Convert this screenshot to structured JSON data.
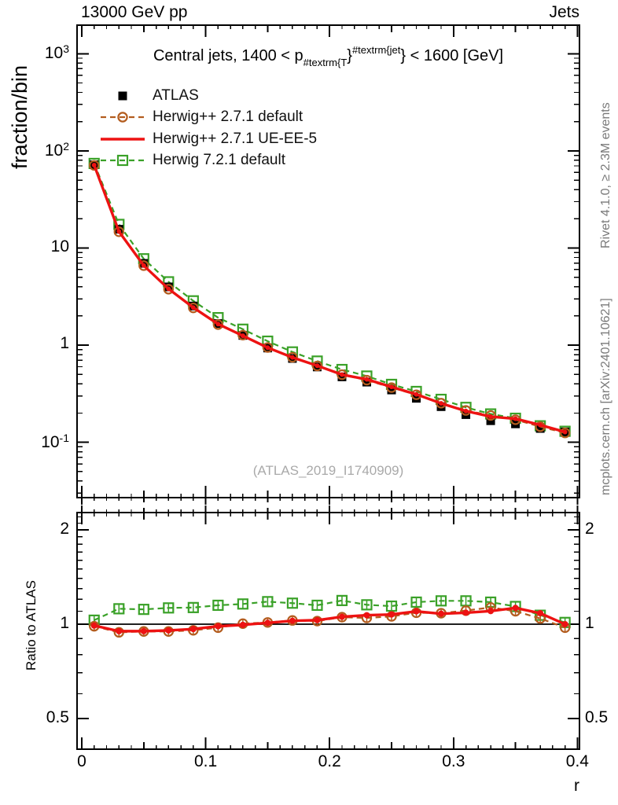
{
  "header": {
    "left": "13000 GeV pp",
    "right": "Jets"
  },
  "side_texts": {
    "rivet": "Rivet 4.1.0, ≥ 2.3M events",
    "mcplots": "mcplots.cern.ch [arXiv:2401.10621]"
  },
  "watermark": "(ATLAS_2019_I1740909)",
  "title": {
    "prefix": "Central jets, 1400 < p",
    "sub": "#textrm{T",
    "brace1": "}",
    "sup": "#textrm{jet",
    "brace2": "}",
    "suffix": " < 1600 [GeV]"
  },
  "axes": {
    "top_ylabel": "fraction/bin",
    "bottom_ylabel": "Ratio to ATLAS",
    "xlabel": "r",
    "xticks": [
      {
        "v": 0,
        "label": "0"
      },
      {
        "v": 0.1,
        "label": "0.1"
      },
      {
        "v": 0.2,
        "label": "0.2"
      },
      {
        "v": 0.3,
        "label": "0.3"
      },
      {
        "v": 0.4,
        "label": "0.4"
      }
    ],
    "top_yticks": [
      {
        "v": 1000,
        "label": "10^3"
      },
      {
        "v": 100,
        "label": "10^2"
      },
      {
        "v": 10,
        "label": "10"
      },
      {
        "v": 1,
        "label": "1"
      },
      {
        "v": 0.1,
        "label": "10^-1"
      }
    ],
    "bottom_yticks": [
      {
        "v": 2,
        "label": "2"
      },
      {
        "v": 1,
        "label": "1"
      },
      {
        "v": 0.5,
        "label": "0.5"
      }
    ],
    "x_range": [
      -0.0038,
      0.4016
    ],
    "top_y_range": [
      0.027,
      1970
    ],
    "bottom_y_range": [
      0.399,
      2.27
    ],
    "grid": false
  },
  "chart_data": {
    "type": "line",
    "title": "Central jets, 1400 < pT^jet < 1600 [GeV]",
    "xlabel": "r",
    "ylabel": "fraction/bin",
    "ratio_ylabel": "Ratio to ATLAS",
    "x_bin_width": 0.02,
    "x": [
      0.01,
      0.03,
      0.05,
      0.07,
      0.09,
      0.11,
      0.13,
      0.15,
      0.17,
      0.19,
      0.21,
      0.23,
      0.25,
      0.27,
      0.29,
      0.31,
      0.33,
      0.35,
      0.37,
      0.39
    ],
    "series": [
      {
        "name": "ATLAS",
        "role": "reference-data",
        "color": "#000000",
        "marker": "filled-square",
        "line": "none",
        "values": [
          72,
          15.6,
          6.95,
          3.98,
          2.53,
          1.67,
          1.26,
          0.935,
          0.73,
          0.597,
          0.472,
          0.417,
          0.346,
          0.284,
          0.233,
          0.193,
          0.167,
          0.155,
          0.139,
          0.128
        ]
      },
      {
        "name": "Herwig++ 2.7.1 default",
        "role": "mc",
        "color": "#b35c1e",
        "marker": "open-circle",
        "line": "dashed",
        "values": [
          70.9,
          14.7,
          6.59,
          3.77,
          2.42,
          1.63,
          1.27,
          0.947,
          0.75,
          0.611,
          0.497,
          0.437,
          0.366,
          0.309,
          0.253,
          0.213,
          0.189,
          0.171,
          0.145,
          0.125
        ],
        "ratio_to_atlas": [
          0.985,
          0.942,
          0.948,
          0.948,
          0.956,
          0.975,
          1.004,
          1.013,
          1.028,
          1.023,
          1.053,
          1.047,
          1.059,
          1.088,
          1.084,
          1.105,
          1.131,
          1.1,
          1.043,
          0.975
        ]
      },
      {
        "name": "Herwig++ 2.7.1 UE-EE-5",
        "role": "mc",
        "color": "#ed1212",
        "marker": "filled-dot",
        "line": "solid",
        "values": [
          71.3,
          14.8,
          6.6,
          3.8,
          2.44,
          1.65,
          1.25,
          0.944,
          0.748,
          0.615,
          0.498,
          0.445,
          0.372,
          0.312,
          0.252,
          0.21,
          0.184,
          0.175,
          0.151,
          0.128
        ],
        "ratio_to_atlas": [
          0.99,
          0.95,
          0.95,
          0.955,
          0.965,
          0.985,
          0.995,
          1.01,
          1.025,
          1.03,
          1.056,
          1.068,
          1.074,
          1.099,
          1.08,
          1.088,
          1.101,
          1.127,
          1.084,
          1.0
        ]
      },
      {
        "name": "Herwig 7.2.1 default",
        "role": "mc",
        "color": "#3aa128",
        "marker": "open-square",
        "line": "dashed",
        "values": [
          74.2,
          17.5,
          7.75,
          4.49,
          2.86,
          1.92,
          1.46,
          1.1,
          0.852,
          0.686,
          0.562,
          0.481,
          0.395,
          0.334,
          0.277,
          0.229,
          0.196,
          0.177,
          0.148,
          0.13
        ],
        "ratio_to_atlas": [
          1.03,
          1.12,
          1.115,
          1.127,
          1.13,
          1.149,
          1.16,
          1.18,
          1.167,
          1.149,
          1.19,
          1.153,
          1.142,
          1.176,
          1.187,
          1.187,
          1.176,
          1.139,
          1.068,
          1.013
        ]
      }
    ],
    "legend_position": "top-left-inside",
    "ratio_reference_line": 1
  }
}
